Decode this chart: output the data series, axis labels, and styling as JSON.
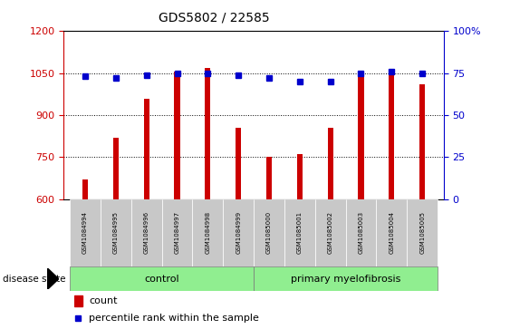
{
  "title": "GDS5802 / 22585",
  "samples": [
    "GSM1084994",
    "GSM1084995",
    "GSM1084996",
    "GSM1084997",
    "GSM1084998",
    "GSM1084999",
    "GSM1085000",
    "GSM1085001",
    "GSM1085002",
    "GSM1085003",
    "GSM1085004",
    "GSM1085005"
  ],
  "counts": [
    670,
    820,
    960,
    1055,
    1070,
    855,
    750,
    762,
    855,
    1058,
    1057,
    1010
  ],
  "percentiles": [
    73,
    72,
    74,
    75,
    75,
    74,
    72,
    70,
    70,
    75,
    76,
    75
  ],
  "ylim_left": [
    600,
    1200
  ],
  "ylim_right": [
    0,
    100
  ],
  "yticks_left": [
    600,
    750,
    900,
    1050,
    1200
  ],
  "yticks_right": [
    0,
    25,
    50,
    75,
    100
  ],
  "bar_color": "#cc0000",
  "dot_color": "#0000cc",
  "group_color": "#90EE90",
  "tick_label_bg": "#c8c8c8",
  "n_control": 6,
  "n_pmf": 6,
  "bar_width": 0.18
}
